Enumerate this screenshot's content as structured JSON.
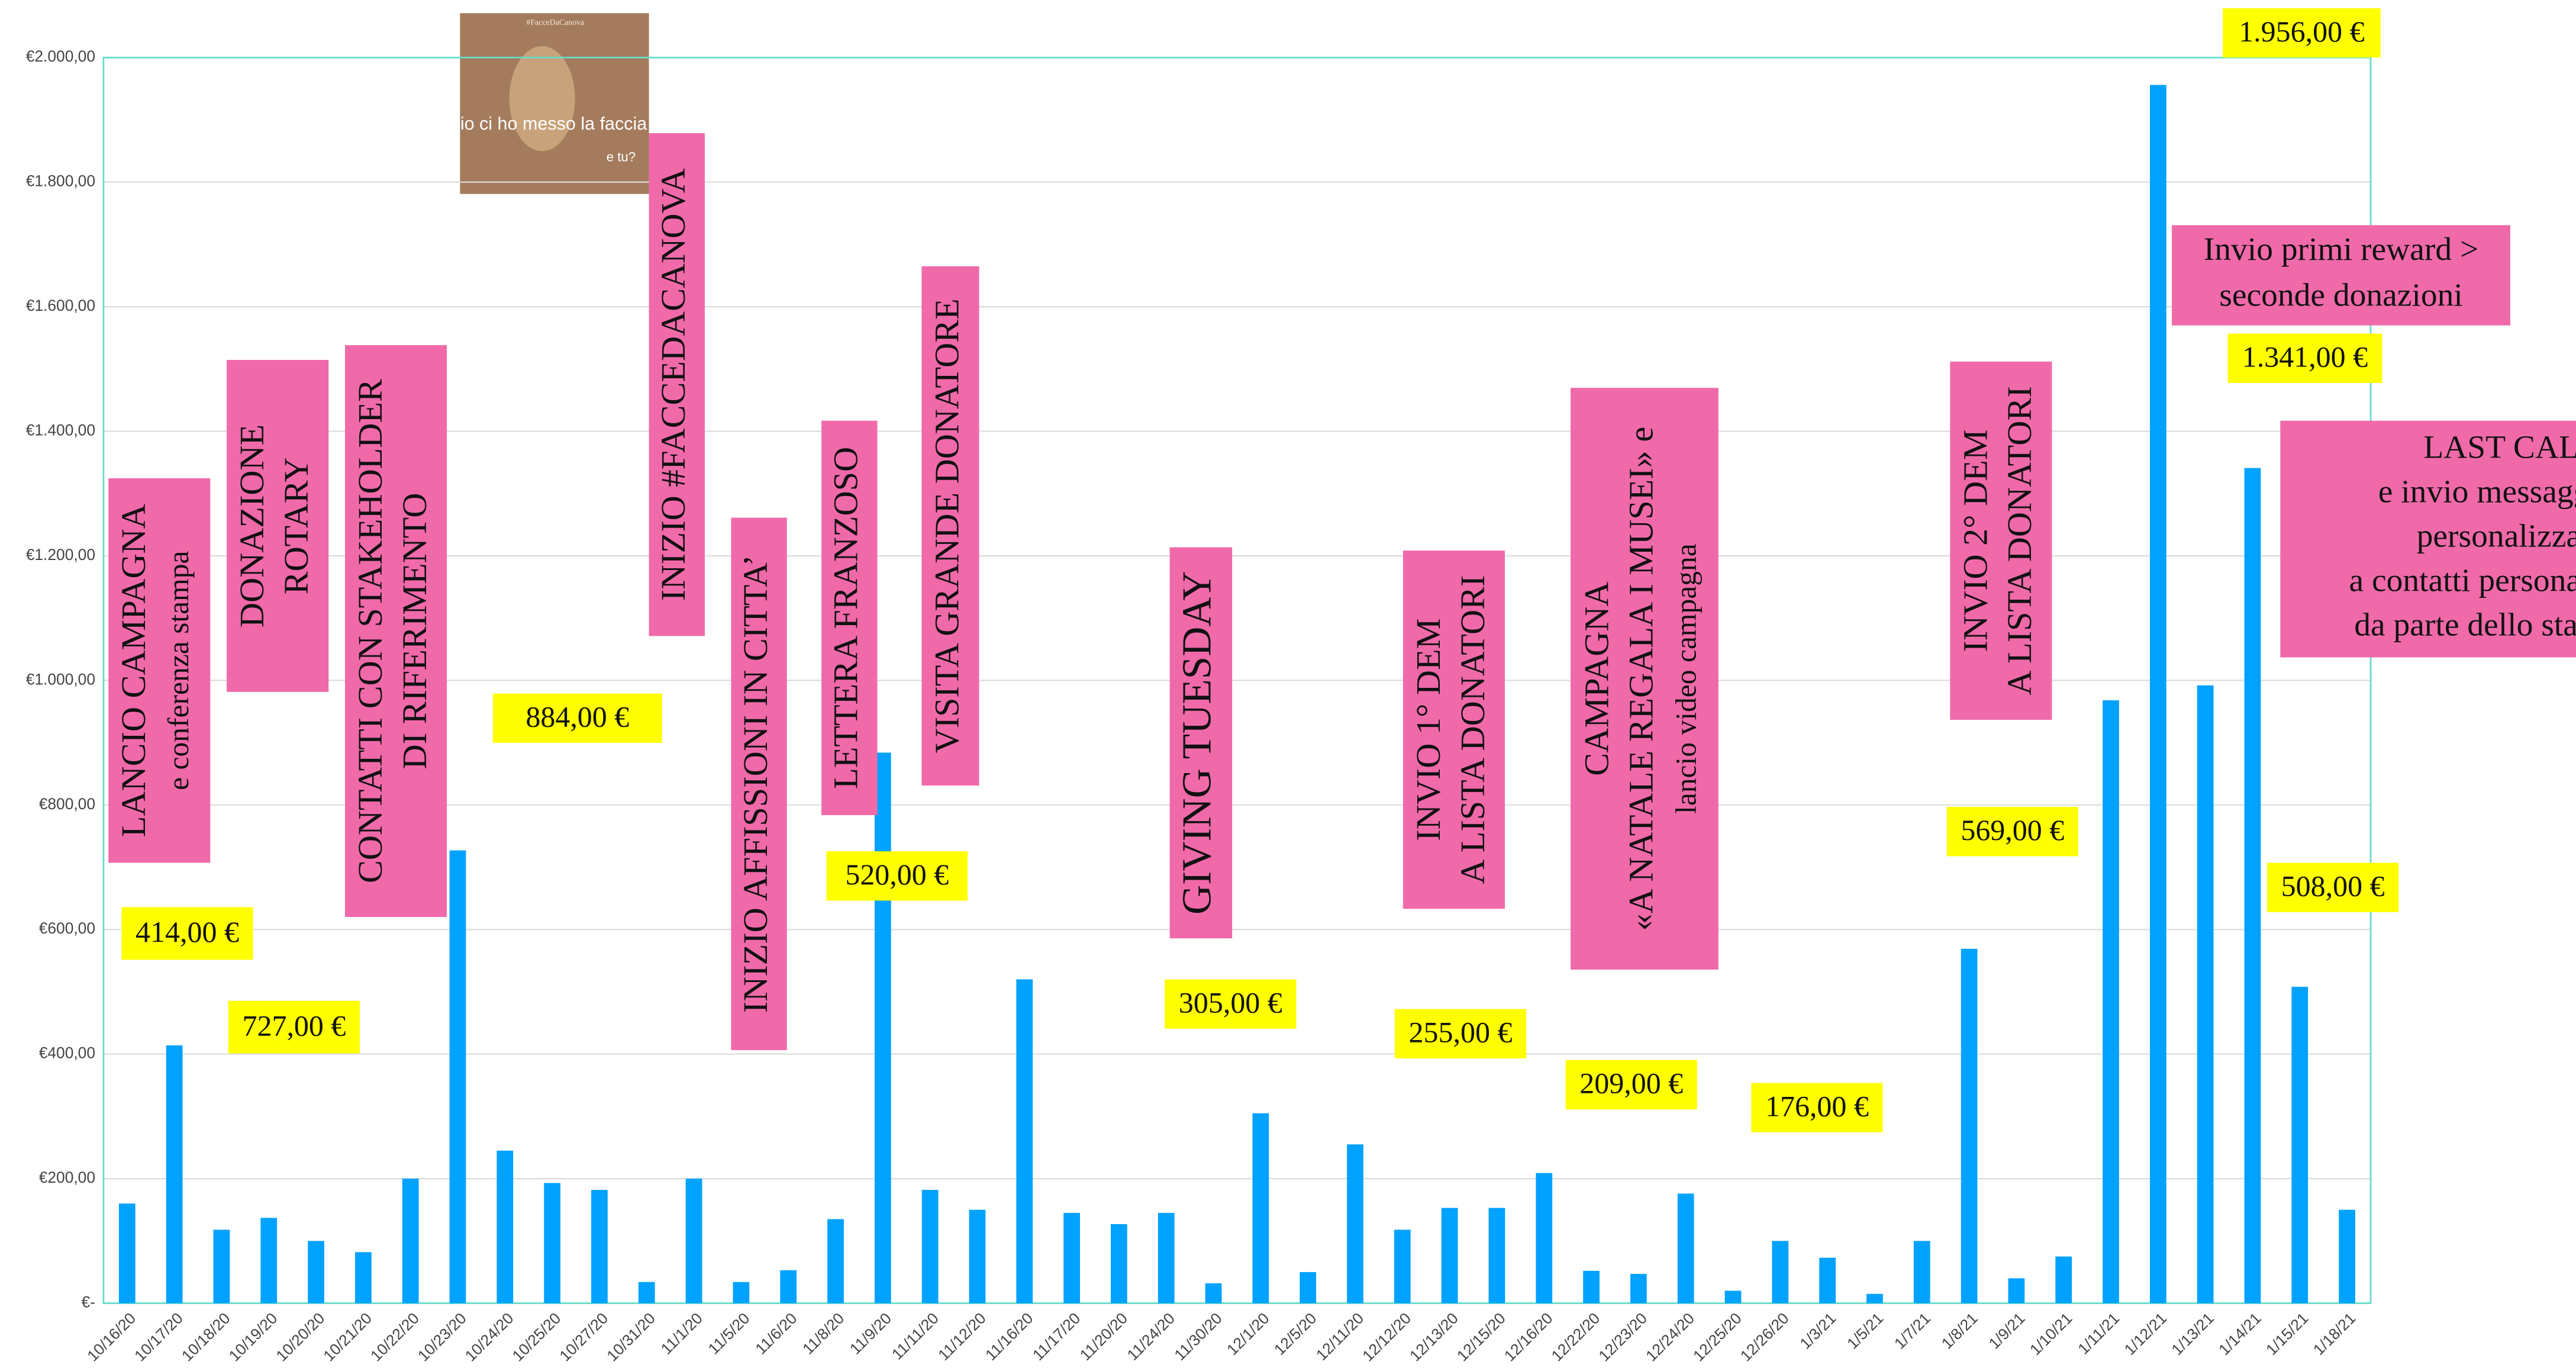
{
  "chart_data": {
    "type": "bar",
    "color": "#00a2ff",
    "grid": true,
    "categories": [
      "10/16/20",
      "10/17/20",
      "10/18/20",
      "10/19/20",
      "10/20/20",
      "10/21/20",
      "10/22/20",
      "10/23/20",
      "10/24/20",
      "10/25/20",
      "10/27/20",
      "10/31/20",
      "11/1/20",
      "11/5/20",
      "11/6/20",
      "11/8/20",
      "11/9/20",
      "11/11/20",
      "11/12/20",
      "11/16/20",
      "11/17/20",
      "11/20/20",
      "11/24/20",
      "11/30/20",
      "12/1/20",
      "12/5/20",
      "12/11/20",
      "12/12/20",
      "12/13/20",
      "12/15/20",
      "12/16/20",
      "12/22/20",
      "12/23/20",
      "12/24/20",
      "12/25/20",
      "12/26/20",
      "1/3/21",
      "1/5/21",
      "1/7/21",
      "1/8/21",
      "1/9/21",
      "1/10/21",
      "1/11/21",
      "1/12/21",
      "1/13/21",
      "1/14/21",
      "1/15/21",
      "1/18/21"
    ],
    "values": [
      160,
      414,
      118,
      137,
      100,
      82,
      200,
      727,
      245,
      193,
      182,
      34,
      200,
      34,
      53,
      135,
      884,
      182,
      150,
      520,
      145,
      127,
      145,
      32,
      305,
      50,
      255,
      118,
      153,
      153,
      209,
      52,
      47,
      176,
      20,
      100,
      73,
      15,
      100,
      569,
      40,
      75,
      968,
      1956,
      992,
      1341,
      508,
      150
    ],
    "ylim": [
      0,
      2000
    ],
    "yticks": [
      {
        "value": 0,
        "label": "€-"
      },
      {
        "value": 200,
        "label": "€200,00"
      },
      {
        "value": 400,
        "label": "€400,00"
      },
      {
        "value": 600,
        "label": "€600,00"
      },
      {
        "value": 800,
        "label": "€800,00"
      },
      {
        "value": 1000,
        "label": "€1.000,00"
      },
      {
        "value": 1200,
        "label": "€1.200,00"
      },
      {
        "value": 1400,
        "label": "€1.400,00"
      },
      {
        "value": 1600,
        "label": "€1.600,00"
      },
      {
        "value": 1800,
        "label": "€1.800,00"
      },
      {
        "value": 2000,
        "label": "€2.000,00"
      }
    ],
    "photo_texts": [
      "#FacceDaCanova",
      "io ci ho messo la faccia",
      "e tu?"
    ],
    "annotations": [
      {
        "lines": [
          "LANCIO CAMPAGNA",
          "e conferenza stampa"
        ]
      },
      {
        "lines": [
          "DONAZIONE",
          "ROTARY"
        ]
      },
      {
        "lines": [
          "CONTATTI CON STAKEHOLDER",
          "DI RIFERIMENTO"
        ]
      },
      {
        "lines": [
          "INIZIO #FACCEDACANOVA"
        ]
      },
      {
        "lines": [
          "INIZIO AFFISSIONI IN CITTA’"
        ]
      },
      {
        "lines": [
          "LETTERA FRANZOSO"
        ]
      },
      {
        "lines": [
          "VISITA GRANDE DONATORE"
        ]
      },
      {
        "lines": [
          "GIVING TUESDAY"
        ]
      },
      {
        "lines": [
          "INVIO 1° DEM",
          "A LISTA DONATORI"
        ]
      },
      {
        "lines": [
          "CAMPAGNA",
          "«A NATALE REGALA I MUSEI» e",
          "lancio video campagna"
        ]
      },
      {
        "lines": [
          "INVIO 2° DEM",
          "A LISTA DONATORI"
        ]
      },
      {
        "lines": [
          "Invio primi reward >",
          "seconde donazioni"
        ]
      },
      {
        "lines": [
          "LAST CALL",
          "e invio messaggi",
          "personalizzati",
          "a contatti personali",
          "da parte dello staff"
        ]
      }
    ],
    "callouts": [
      "414,00 €",
      "727,00 €",
      "884,00 €",
      "520,00 €",
      "305,00 €",
      "255,00 €",
      "209,00 €",
      "176,00 €",
      "569,00 €",
      "1.956,00 €",
      "1.341,00 €",
      "508,00 €"
    ]
  }
}
